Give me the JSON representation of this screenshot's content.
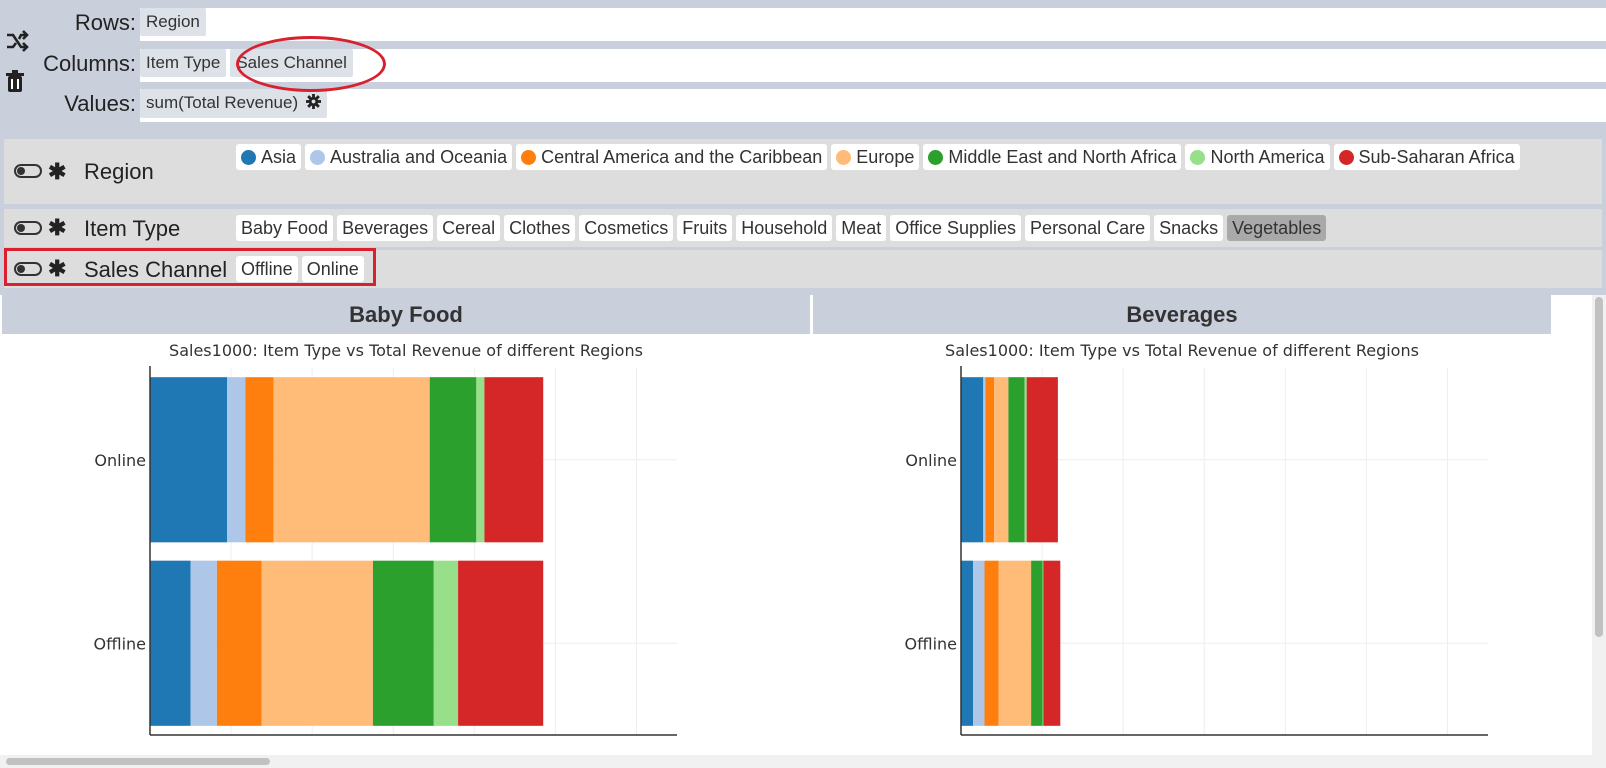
{
  "config": {
    "rows_label": "Rows:",
    "columns_label": "Columns:",
    "values_label": "Values:",
    "rows": [
      "Region"
    ],
    "columns": [
      "Item Type",
      "Sales Channel"
    ],
    "values": [
      "sum(Total Revenue)"
    ],
    "shuffle_icon": "shuffle-icon",
    "trash_icon": "trash-icon",
    "gear_icon": "gear-icon"
  },
  "filters": [
    {
      "name": "Region",
      "values": [
        {
          "label": "Asia",
          "color": "#1f77b4"
        },
        {
          "label": "Australia and Oceania",
          "color": "#aec7e8"
        },
        {
          "label": "Central America and the Caribbean",
          "color": "#ff7f0e"
        },
        {
          "label": "Europe",
          "color": "#ffbb78"
        },
        {
          "label": "Middle East and North Africa",
          "color": "#2ca02c"
        },
        {
          "label": "North America",
          "color": "#98df8a"
        },
        {
          "label": "Sub-Saharan Africa",
          "color": "#d62728"
        }
      ]
    },
    {
      "name": "Item Type",
      "values": [
        {
          "label": "Baby Food"
        },
        {
          "label": "Beverages"
        },
        {
          "label": "Cereal"
        },
        {
          "label": "Clothes"
        },
        {
          "label": "Cosmetics"
        },
        {
          "label": "Fruits"
        },
        {
          "label": "Household"
        },
        {
          "label": "Meat"
        },
        {
          "label": "Office Supplies"
        },
        {
          "label": "Personal Care"
        },
        {
          "label": "Snacks"
        },
        {
          "label": "Vegetables",
          "selected": true
        }
      ]
    },
    {
      "name": "Sales Channel",
      "values": [
        {
          "label": "Offline"
        },
        {
          "label": "Online"
        }
      ]
    }
  ],
  "chart_data": [
    {
      "type": "bar",
      "orientation": "horizontal",
      "stacked": true,
      "title": "Baby Food",
      "subtitle": "Sales1000: Item Type vs Total Revenue of different Regions",
      "categories": [
        "Online",
        "Offline"
      ],
      "xlim": [
        0,
        130
      ],
      "series": [
        {
          "name": "Asia",
          "color": "#1f77b4",
          "values": [
            19,
            10
          ]
        },
        {
          "name": "Australia and Oceania",
          "color": "#aec7e8",
          "values": [
            4.5,
            6.5
          ]
        },
        {
          "name": "Central America and the Caribbean",
          "color": "#ff7f0e",
          "values": [
            7,
            11
          ]
        },
        {
          "name": "Europe",
          "color": "#ffbb78",
          "values": [
            38.5,
            27.5
          ]
        },
        {
          "name": "Middle East and North Africa",
          "color": "#2ca02c",
          "values": [
            11.5,
            15
          ]
        },
        {
          "name": "North America",
          "color": "#98df8a",
          "values": [
            2,
            6
          ]
        },
        {
          "name": "Sub-Saharan Africa",
          "color": "#d62728",
          "values": [
            14.5,
            21
          ]
        }
      ]
    },
    {
      "type": "bar",
      "orientation": "horizontal",
      "stacked": true,
      "title": "Beverages",
      "subtitle": "Sales1000: Item Type vs Total Revenue of different Regions",
      "categories": [
        "Online",
        "Offline"
      ],
      "xlim": [
        0,
        130
      ],
      "series": [
        {
          "name": "Asia",
          "color": "#1f77b4",
          "values": [
            5.5,
            3
          ]
        },
        {
          "name": "Australia and Oceania",
          "color": "#aec7e8",
          "values": [
            0.5,
            2.8
          ]
        },
        {
          "name": "Central America and the Caribbean",
          "color": "#ff7f0e",
          "values": [
            2.2,
            3.5
          ]
        },
        {
          "name": "Europe",
          "color": "#ffbb78",
          "values": [
            3.5,
            8
          ]
        },
        {
          "name": "Middle East and North Africa",
          "color": "#2ca02c",
          "values": [
            4,
            2.8
          ]
        },
        {
          "name": "North America",
          "color": "#98df8a",
          "values": [
            0.5,
            0.2
          ]
        },
        {
          "name": "Sub-Saharan Africa",
          "color": "#d62728",
          "values": [
            7.7,
            4.2
          ]
        }
      ]
    }
  ]
}
